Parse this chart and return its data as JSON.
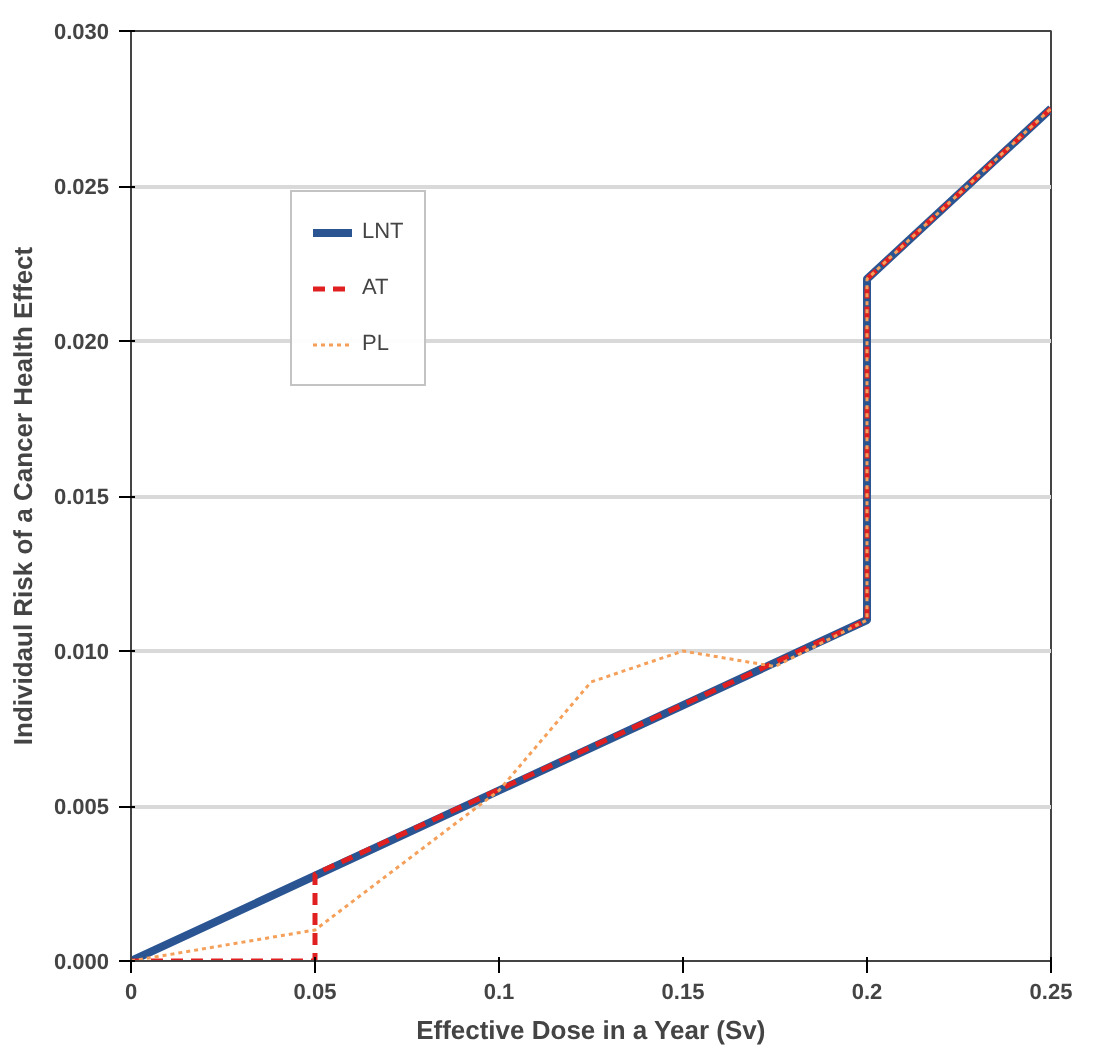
{
  "chart_data": {
    "type": "line",
    "xlabel": "Effective Dose in a Year (Sv)",
    "ylabel": "Individaul Risk of a Cancer Health Effect",
    "xlim": [
      0,
      0.25
    ],
    "ylim": [
      0,
      0.03
    ],
    "xticks": [
      0,
      0.05,
      0.1,
      0.15,
      0.2,
      0.25
    ],
    "yticks": [
      {
        "value": 0,
        "label": "0.000"
      },
      {
        "value": 0.005,
        "label": "0.005"
      },
      {
        "value": 0.01,
        "label": "0.010"
      },
      {
        "value": 0.015,
        "label": "0.015"
      },
      {
        "value": 0.02,
        "label": "0.020"
      },
      {
        "value": 0.025,
        "label": "0.025"
      },
      {
        "value": 0.03,
        "label": "0.030"
      }
    ],
    "grid": "y",
    "legend": "top left",
    "series": [
      {
        "name": "LNT",
        "color": "#2a5592",
        "line_style": "solid",
        "x": [
          0,
          0.2,
          0.2,
          0.25
        ],
        "values": [
          0,
          0.011,
          0.022,
          0.0275
        ]
      },
      {
        "name": "AT",
        "color": "#e02020",
        "line_style": "dashed",
        "x": [
          0,
          0.05,
          0.05,
          0.2,
          0.2,
          0.25
        ],
        "values": [
          0,
          0,
          0.0028,
          0.011,
          0.022,
          0.0275
        ]
      },
      {
        "name": "PL",
        "color": "#f5a05a",
        "line_style": "dotted",
        "x": [
          0,
          0.05,
          0.1,
          0.125,
          0.15,
          0.175,
          0.2,
          0.2,
          0.25
        ],
        "values": [
          0,
          0.001,
          0.0055,
          0.009,
          0.01,
          0.0095,
          0.011,
          0.022,
          0.0275
        ]
      }
    ]
  }
}
